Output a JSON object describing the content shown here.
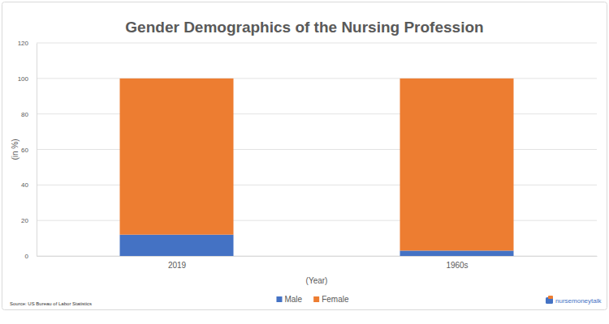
{
  "chart_data": {
    "type": "bar",
    "title": "Gender Demographics of the Nursing Profession",
    "x_label": "(Year)",
    "y_label": "(in %)",
    "categories": [
      "2019",
      "1960s"
    ],
    "series": [
      {
        "name": "Male",
        "color": "#4472c4",
        "values": [
          12,
          3
        ]
      },
      {
        "name": "Female",
        "color": "#ed7d31",
        "values": [
          88,
          97
        ]
      }
    ],
    "ylim": [
      0,
      120
    ],
    "yticks": [
      0,
      20,
      40,
      60,
      80,
      100,
      120
    ],
    "grid": true,
    "stacked": true,
    "legend": "bottom",
    "annotations": [
      "Source: US Bureau of Labor Statistics",
      "nursemoneytalk"
    ]
  }
}
